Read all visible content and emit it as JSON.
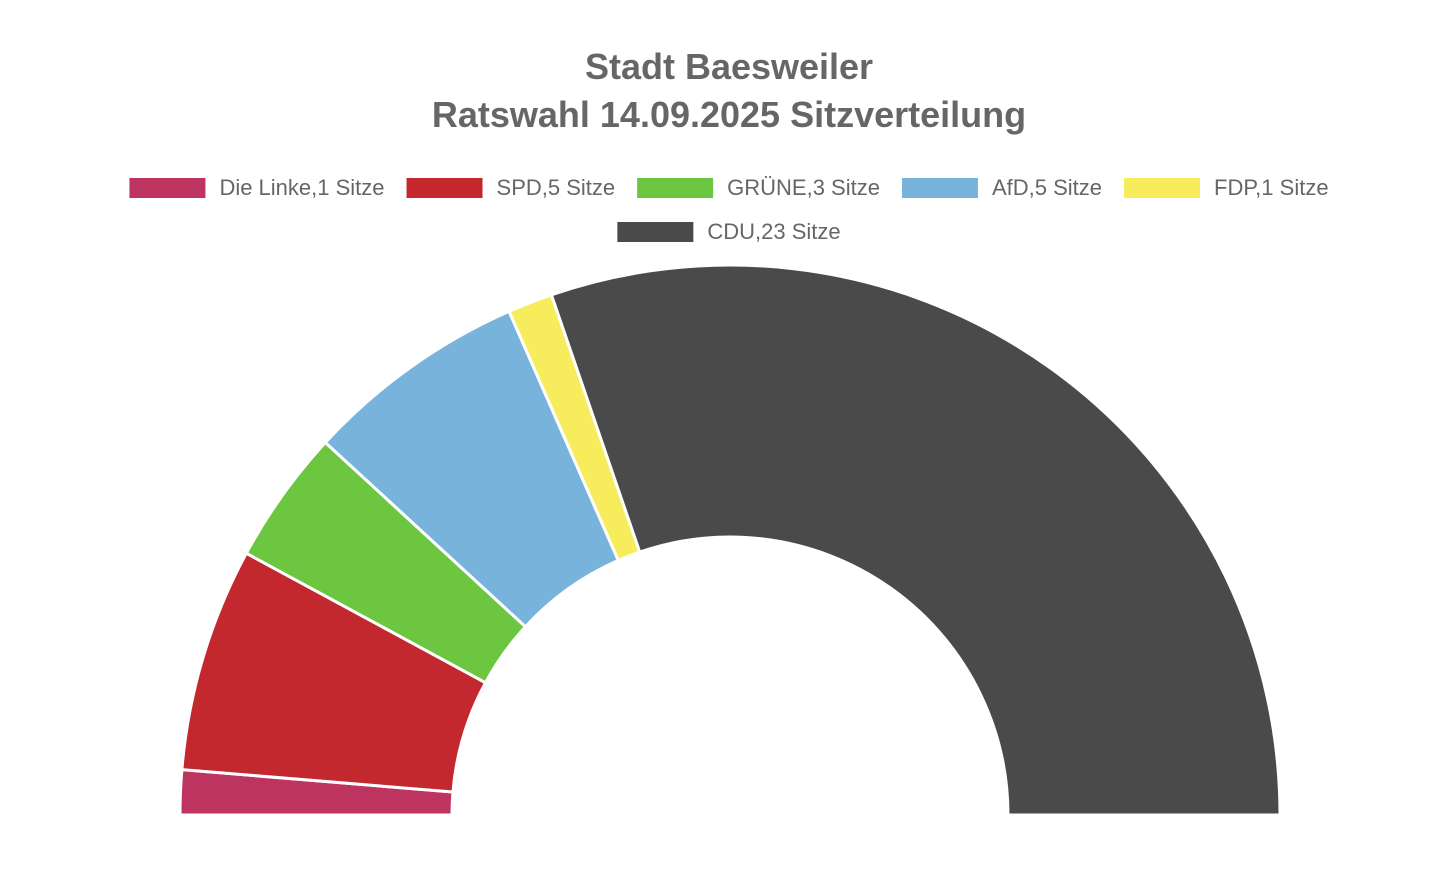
{
  "chart_data": {
    "type": "half-doughnut",
    "title": [
      "Stadt Baesweiler",
      "Ratswahl 14.09.2025 Sitzverteilung"
    ],
    "categories": [
      "Die Linke,1 Sitze",
      "SPD,5 Sitze",
      "GRÜNE,3 Sitze",
      "AfD,5 Sitze",
      "FDP,1 Sitze",
      "CDU,23 Sitze"
    ],
    "values": [
      1,
      5,
      3,
      5,
      1,
      23
    ],
    "colors": [
      "#be3461",
      "#c4282f",
      "#6cc63f",
      "#78b3dc",
      "#f7ec5c",
      "#4a4a4a"
    ],
    "legend": "top"
  }
}
